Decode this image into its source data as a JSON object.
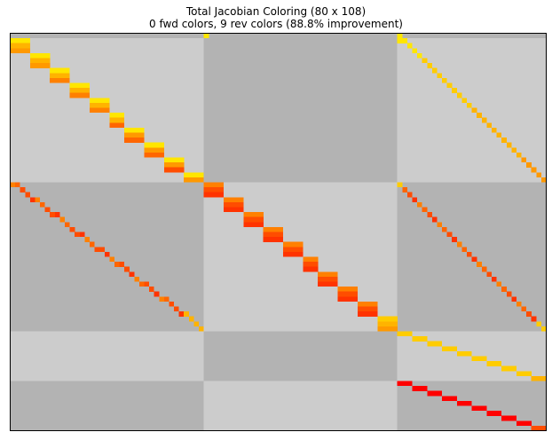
{
  "chart_data": {
    "type": "heatmap",
    "title": "Total Jacobian Coloring (80 x 108)",
    "subtitle": "0 fwd colors, 9 rev colors (88.8% improvement)",
    "rows": 80,
    "cols": 108,
    "grid": false,
    "row_blocks": [
      {
        "start": 0,
        "end": 30
      },
      {
        "start": 30,
        "end": 60
      },
      {
        "start": 60,
        "end": 70
      },
      {
        "start": 70,
        "end": 80
      }
    ],
    "col_blocks": [
      {
        "start": 0,
        "end": 39
      },
      {
        "start": 39,
        "end": 78
      },
      {
        "start": 78,
        "end": 108
      }
    ],
    "block_shading": [
      [
        "#cccccc",
        "#b3b3b3",
        "#cccccc"
      ],
      [
        "#b3b3b3",
        "#cccccc",
        "#b3b3b3"
      ],
      [
        "#cccccc",
        "#b3b3b3",
        "#cccccc"
      ],
      [
        "#b3b3b3",
        "#cccccc",
        "#b3b3b3"
      ]
    ],
    "top_band": {
      "row": 0,
      "color": "#b3b3b3"
    },
    "palette": [
      "#ffe600",
      "#ffcc00",
      "#ffb300",
      "#ff9900",
      "#ff8000",
      "#ff6600",
      "#ff4d00",
      "#ff3300",
      "#ff0000"
    ],
    "color_rule": "reverse colors indexed by row; each nonzero cell is shaded by the color assigned to its row",
    "nonzero_pattern": [
      {
        "block": "r0-c1",
        "desc": "row 0 single entry",
        "row": 0,
        "col": 39,
        "color_index": 0
      },
      {
        "block": "r0-c2",
        "desc": "row 0 single entry",
        "row": 0,
        "col": 78,
        "color_index": 0
      },
      {
        "block": "r1-c0",
        "desc": "block diagonal 3x4",
        "row_start": 1,
        "row_end": 30,
        "col_start": 0,
        "col_end": 39
      },
      {
        "block": "r1-c2",
        "desc": "diagonal",
        "row_start": 1,
        "row_end": 30,
        "col_start": 78,
        "col_end": 108
      },
      {
        "block": "r2-c0",
        "desc": "diagonal",
        "row_start": 30,
        "row_end": 60,
        "col_start": 0,
        "col_end": 39
      },
      {
        "block": "r2-c1",
        "desc": "block diagonal 3x4",
        "row_start": 30,
        "row_end": 60,
        "col_start": 39,
        "col_end": 78
      },
      {
        "block": "r2-c2",
        "desc": "diagonal",
        "row_start": 30,
        "row_end": 60,
        "col_start": 78,
        "col_end": 108
      },
      {
        "block": "r3-c2",
        "desc": "block diagonal 1x3",
        "row_start": 60,
        "row_end": 70,
        "col_start": 78,
        "col_end": 108
      },
      {
        "block": "r4-c2",
        "desc": "block diagonal 1x3",
        "row_start": 70,
        "row_end": 80,
        "col_start": 78,
        "col_end": 108
      }
    ]
  }
}
